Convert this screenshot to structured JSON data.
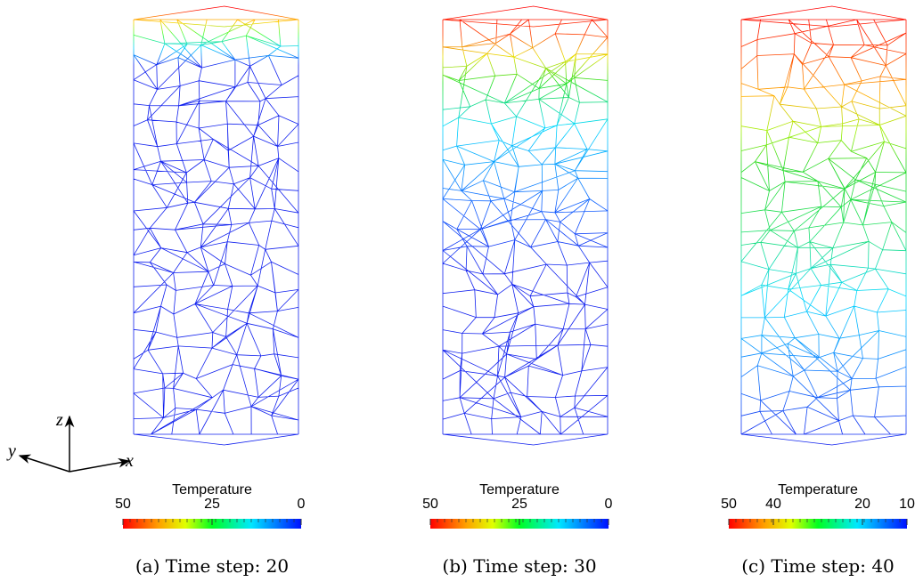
{
  "axes": {
    "z": "z",
    "y": "y",
    "x": "x"
  },
  "panels": [
    {
      "colorbar": {
        "title": "Temperature",
        "range": [
          50,
          0
        ],
        "ticks": [
          50,
          25,
          0
        ]
      },
      "caption": "(a) Time step: 20"
    },
    {
      "colorbar": {
        "title": "Temperature",
        "range": [
          50,
          0
        ],
        "ticks": [
          50,
          25,
          0
        ]
      },
      "caption": "(b) Time step: 30"
    },
    {
      "colorbar": {
        "title": "Temperature",
        "range": [
          50,
          10
        ],
        "ticks": [
          50,
          40,
          20,
          10
        ]
      },
      "caption": "(c) Time step: 40"
    }
  ]
}
